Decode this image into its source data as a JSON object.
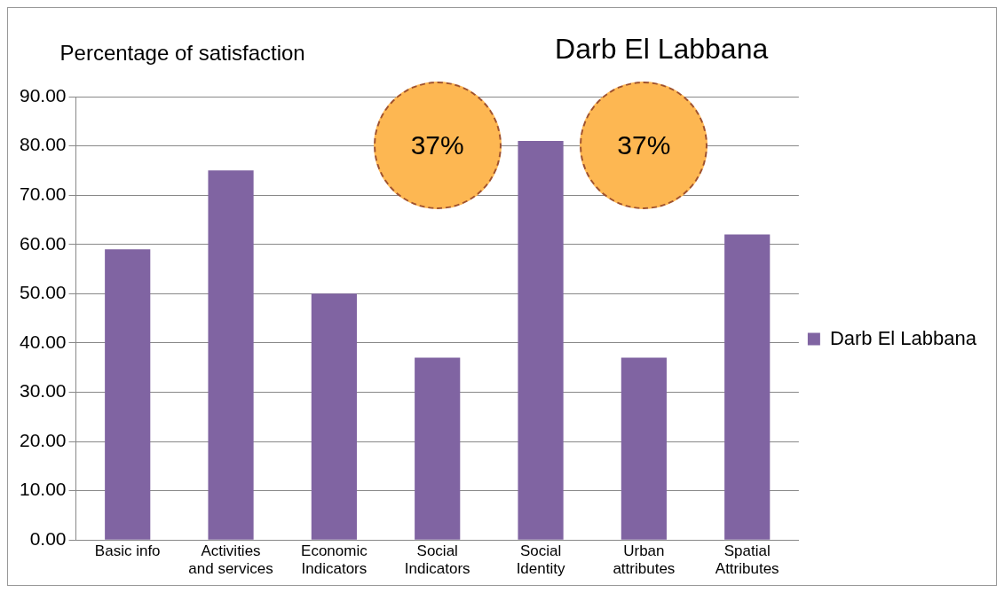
{
  "chart_data": {
    "type": "bar",
    "title": "Darb El Labbana",
    "ylabel": "Percentage of satisfaction",
    "categories": [
      "Basic info",
      "Activities and services",
      "Economic Indicators",
      "Social Indicators",
      "Social Identity",
      "Urban attributes",
      "Spatial Attributes"
    ],
    "series": [
      {
        "name": "Darb El Labbana",
        "color": "#8064a2",
        "values": [
          59,
          75,
          50,
          37,
          81,
          37,
          62
        ]
      }
    ],
    "ylim": [
      0,
      90
    ],
    "yticks": [
      {
        "value": 0,
        "label": "0.00"
      },
      {
        "value": 10,
        "label": "10.00"
      },
      {
        "value": 20,
        "label": "20.00"
      },
      {
        "value": 30,
        "label": "30.00"
      },
      {
        "value": 40,
        "label": "40.00"
      },
      {
        "value": 50,
        "label": "50.00"
      },
      {
        "value": 60,
        "label": "60.00"
      },
      {
        "value": 70,
        "label": "70.00"
      },
      {
        "value": 80,
        "label": "80.00"
      },
      {
        "value": 90,
        "label": "90.00"
      }
    ],
    "grid": "y",
    "legend": "right",
    "annotations": [
      "37%",
      "37%"
    ]
  }
}
